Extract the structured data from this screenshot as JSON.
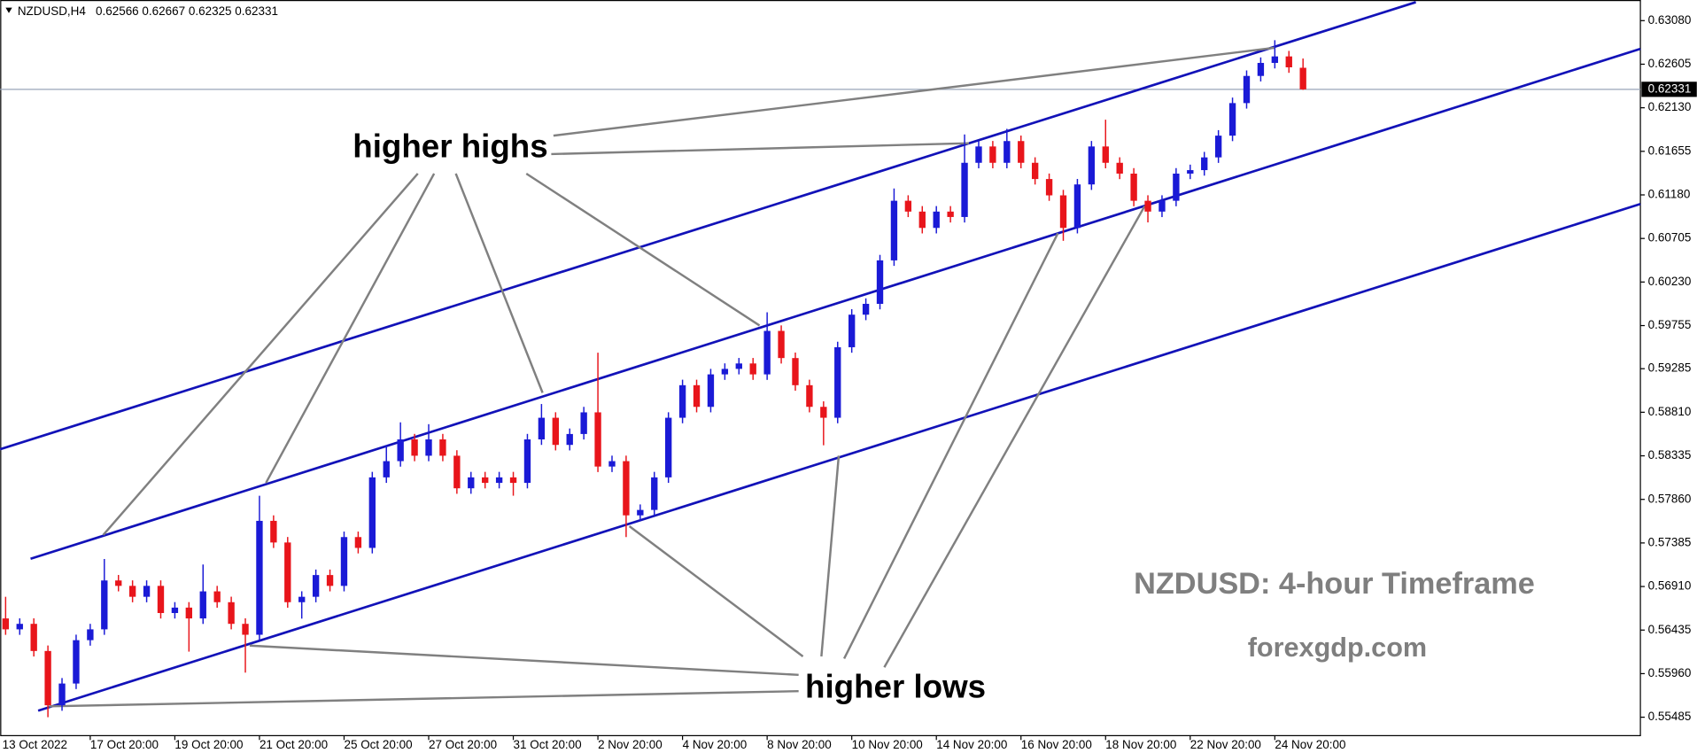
{
  "chart_data": {
    "type": "candlestick",
    "title": "NZDUSD,H4",
    "categories": [
      "13 Oct 2022",
      null,
      null,
      null,
      null,
      null,
      "17 Oct 20:00",
      null,
      null,
      null,
      null,
      null,
      "19 Oct 20:00",
      null,
      null,
      null,
      null,
      null,
      "21 Oct 20:00",
      null,
      null,
      null,
      null,
      null,
      "25 Oct 20:00",
      null,
      null,
      null,
      null,
      null,
      "27 Oct 20:00",
      null,
      null,
      null,
      null,
      null,
      "31 Oct 20:00",
      null,
      null,
      null,
      null,
      null,
      "2 Nov 20:00",
      null,
      null,
      null,
      null,
      null,
      "4 Nov 20:00",
      null,
      null,
      null,
      null,
      null,
      "8 Nov 20:00",
      null,
      null,
      null,
      null,
      null,
      "10 Nov 20:00",
      null,
      null,
      null,
      null,
      null,
      "14 Nov 20:00",
      null,
      null,
      null,
      null,
      null,
      "16 Nov 20:00",
      null,
      null,
      null,
      null,
      null,
      "18 Nov 20:00",
      null,
      null,
      null,
      null,
      null,
      "22 Nov 20:00",
      null,
      null,
      null,
      null,
      null,
      "24 Nov 20:00",
      null,
      null
    ],
    "open": [
      0.56562,
      0.56443,
      0.56503,
      0.56207,
      0.55615,
      0.55852,
      0.56325,
      0.56443,
      0.56976,
      0.56917,
      0.56798,
      0.56917,
      0.56621,
      0.5668,
      0.56562,
      0.56857,
      0.56739,
      0.56503,
      0.56384,
      0.57626,
      0.5739,
      0.56739,
      0.56798,
      0.57035,
      0.56917,
      0.57449,
      0.57331,
      0.581,
      0.58277,
      0.58514,
      0.58336,
      0.58514,
      0.58336,
      0.57981,
      0.581,
      0.5804,
      0.581,
      0.5804,
      0.58514,
      0.5875,
      0.58454,
      0.58573,
      0.58809,
      0.58218,
      0.58277,
      0.57686,
      0.57745,
      0.581,
      0.5875,
      0.59105,
      0.58869,
      0.59223,
      0.59283,
      0.59342,
      0.59223,
      0.59697,
      0.59401,
      0.59105,
      0.58869,
      0.5875,
      0.59519,
      0.59874,
      0.59992,
      0.60466,
      0.61116,
      0.60998,
      0.6082,
      0.60998,
      0.60939,
      0.6153,
      0.61708,
      0.6153,
      0.61767,
      0.6153,
      0.61353,
      0.61175,
      0.6082,
      0.61294,
      0.61708,
      0.6153,
      0.61412,
      0.61116,
      0.60998,
      0.61116,
      0.61412,
      0.6145,
      0.61589,
      0.61826,
      0.62181,
      0.62477,
      0.62619,
      0.6269,
      0.62566
    ],
    "high": [
      0.56798,
      0.56563,
      0.56563,
      0.56267,
      0.55912,
      0.56385,
      0.56503,
      0.5721,
      0.57036,
      0.56977,
      0.56977,
      0.56977,
      0.5674,
      0.5674,
      0.5715,
      0.56917,
      0.56799,
      0.56563,
      0.579,
      0.57686,
      0.5745,
      0.56858,
      0.57095,
      0.57095,
      0.57509,
      0.57509,
      0.5816,
      0.5845,
      0.587,
      0.58574,
      0.5868,
      0.58574,
      0.58396,
      0.5816,
      0.5816,
      0.5816,
      0.5816,
      0.58574,
      0.589,
      0.5881,
      0.58633,
      0.58869,
      0.5946,
      0.58337,
      0.58337,
      0.57805,
      0.5816,
      0.5881,
      0.59165,
      0.59165,
      0.59283,
      0.59343,
      0.59402,
      0.59402,
      0.599,
      0.59757,
      0.59461,
      0.59165,
      0.58929,
      0.59579,
      0.59934,
      0.60052,
      0.60526,
      0.6125,
      0.61176,
      0.61058,
      0.61058,
      0.61058,
      0.61839,
      0.61768,
      0.61768,
      0.619,
      0.61827,
      0.6159,
      0.61413,
      0.61235,
      0.61354,
      0.61768,
      0.62,
      0.6159,
      0.61472,
      0.61176,
      0.61176,
      0.61472,
      0.6151,
      0.61649,
      0.61886,
      0.62241,
      0.62537,
      0.62679,
      0.62867,
      0.6275,
      0.62667
    ],
    "low": [
      0.56383,
      0.56383,
      0.56147,
      0.55485,
      0.55555,
      0.55792,
      0.56265,
      0.56383,
      0.56857,
      0.56738,
      0.56738,
      0.56561,
      0.56561,
      0.562,
      0.56502,
      0.56679,
      0.56443,
      0.55971,
      0.56324,
      0.5733,
      0.56679,
      0.5656,
      0.56738,
      0.56857,
      0.56857,
      0.57271,
      0.57271,
      0.5804,
      0.58217,
      0.58276,
      0.58276,
      0.58276,
      0.57921,
      0.57921,
      0.5798,
      0.5798,
      0.579,
      0.5798,
      0.58454,
      0.58394,
      0.58394,
      0.58513,
      0.58158,
      0.58158,
      0.57449,
      0.57626,
      0.57685,
      0.5804,
      0.5869,
      0.58809,
      0.58809,
      0.59163,
      0.59223,
      0.59163,
      0.59163,
      0.59341,
      0.59045,
      0.58809,
      0.5845,
      0.5869,
      0.59459,
      0.59814,
      0.59932,
      0.60406,
      0.60938,
      0.6076,
      0.6076,
      0.60879,
      0.60879,
      0.6147,
      0.6147,
      0.6147,
      0.6147,
      0.61293,
      0.61115,
      0.60679,
      0.6076,
      0.61234,
      0.6147,
      0.61352,
      0.61056,
      0.6088,
      0.60938,
      0.61056,
      0.61352,
      0.6139,
      0.61529,
      0.61766,
      0.62121,
      0.62417,
      0.62559,
      0.62511,
      0.62325
    ],
    "close": [
      0.56443,
      0.56503,
      0.56207,
      0.55615,
      0.55852,
      0.56325,
      0.56443,
      0.56976,
      0.56917,
      0.56798,
      0.56917,
      0.56621,
      0.5668,
      0.56562,
      0.56857,
      0.56739,
      0.56503,
      0.56384,
      0.57626,
      0.5739,
      0.56739,
      0.56798,
      0.57035,
      0.56917,
      0.57449,
      0.57331,
      0.581,
      0.58277,
      0.58514,
      0.58336,
      0.58514,
      0.58336,
      0.57981,
      0.581,
      0.5804,
      0.581,
      0.5804,
      0.58514,
      0.5875,
      0.58454,
      0.58573,
      0.58809,
      0.58218,
      0.58277,
      0.57686,
      0.57745,
      0.581,
      0.5875,
      0.59105,
      0.58869,
      0.59223,
      0.59283,
      0.59342,
      0.59223,
      0.59697,
      0.59401,
      0.59105,
      0.58869,
      0.5875,
      0.59519,
      0.59874,
      0.59992,
      0.60466,
      0.61116,
      0.60998,
      0.6082,
      0.60998,
      0.60939,
      0.6153,
      0.61708,
      0.6153,
      0.61767,
      0.6153,
      0.61353,
      0.61175,
      0.6082,
      0.61294,
      0.61708,
      0.6153,
      0.61412,
      0.61116,
      0.60998,
      0.61116,
      0.61412,
      0.6145,
      0.61589,
      0.61826,
      0.62181,
      0.62477,
      0.62619,
      0.6269,
      0.62571,
      0.62331
    ],
    "up_color": "#1a1ad6",
    "down_color": "#e8151b",
    "ylim": [
      0.55284,
      0.63305
    ],
    "yticks": [
      {
        "value": 0.6308,
        "label": "0.63080"
      },
      0.62605,
      {
        "value": 0.6213,
        "label": "0.62130"
      },
      0.61655,
      {
        "value": 0.6118,
        "label": "0.61180"
      },
      0.60705,
      {
        "value": 0.6023,
        "label": "0.60230"
      },
      0.59755,
      0.59285,
      {
        "value": 0.5881,
        "label": "0.58810"
      },
      0.58335,
      {
        "value": 0.5786,
        "label": "0.57860"
      },
      0.57385,
      {
        "value": 0.5691,
        "label": "0.56910"
      },
      0.56435,
      {
        "value": 0.5596,
        "label": "0.55960"
      },
      0.55485
    ],
    "annotations": [
      "higher highs",
      "higher lows"
    ],
    "watermark": "NZDUSD: 4-hour Timeframe",
    "source": "forexgdp.com"
  }
}
